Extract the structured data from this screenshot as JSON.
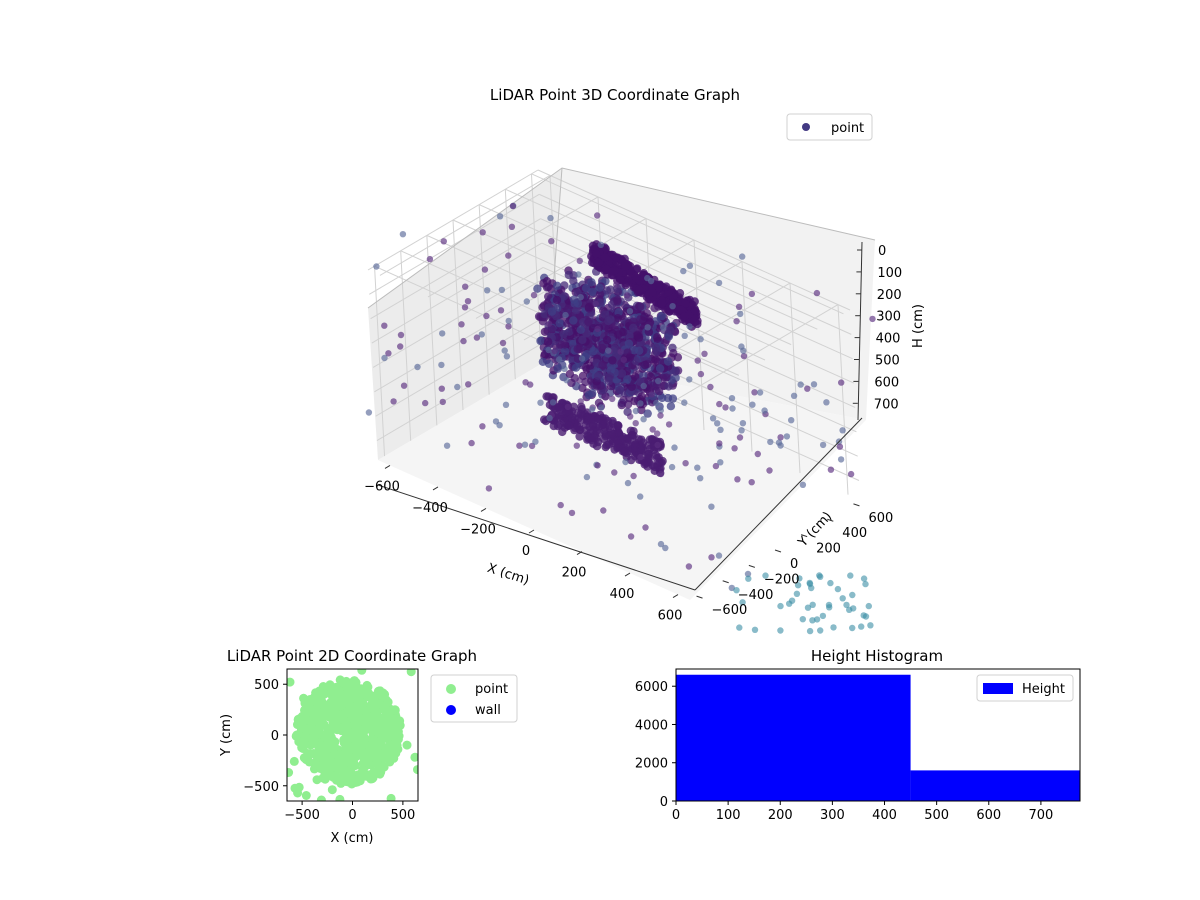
{
  "figure": {
    "background": "#ffffff"
  },
  "chart_data": [
    {
      "type": "scatter",
      "subtype": "3d",
      "title": "LiDAR Point 3D Coordinate Graph",
      "xlabel": "X (cm)",
      "ylabel": "Y (cm)",
      "zlabel": "H (cm)",
      "x_ticks": [
        "−600",
        "−400",
        "−200",
        "0",
        "200",
        "400",
        "600"
      ],
      "y_ticks": [
        "−600",
        "−400",
        "−200",
        "0",
        "200",
        "400",
        "600"
      ],
      "z_ticks": [
        "0",
        "100",
        "200",
        "300",
        "400",
        "500",
        "600",
        "700"
      ],
      "z_inverted": true,
      "xlim": [
        -650,
        650
      ],
      "ylim": [
        -650,
        650
      ],
      "zlim": [
        0,
        780
      ],
      "grid": true,
      "legend": {
        "position": "top-right",
        "entries": [
          {
            "label": "point",
            "color": "#433a83"
          }
        ]
      },
      "colormap": "viridis",
      "colors": {
        "dense": "#45106a",
        "mid": "#3b3a87",
        "sparse_teal": "#3b8ea5"
      },
      "series": [
        {
          "name": "point",
          "marker": "circle",
          "points_estimated": 8200
        }
      ]
    },
    {
      "type": "scatter",
      "title": "LiDAR Point 2D Coordinate Graph",
      "xlabel": "X (cm)",
      "ylabel": "Y (cm)",
      "x_ticks": [
        "−500",
        "0",
        "500"
      ],
      "y_ticks": [
        "500",
        "0",
        "−500"
      ],
      "xlim": [
        -650,
        650
      ],
      "ylim": [
        -650,
        650
      ],
      "legend": {
        "position": "outside-right",
        "entries": [
          {
            "label": "point",
            "color": "#90ee90"
          },
          {
            "label": "wall",
            "color": "#0000ff"
          }
        ]
      },
      "series": [
        {
          "name": "point",
          "color": "#90ee90",
          "extent_x": [
            -650,
            650
          ],
          "extent_y": [
            -650,
            650
          ]
        },
        {
          "name": "wall",
          "color": "#0000ff",
          "points": []
        }
      ]
    },
    {
      "type": "bar",
      "subtype": "histogram",
      "title": "Height Histogram",
      "bins": [
        [
          0,
          450
        ],
        [
          450,
          775
        ]
      ],
      "values": [
        6600,
        1600
      ],
      "color": "#0000ff",
      "xlim": [
        0,
        775
      ],
      "ylim": [
        0,
        6900
      ],
      "x_ticks": [
        "0",
        "100",
        "200",
        "300",
        "400",
        "500",
        "600",
        "700"
      ],
      "y_ticks": [
        "0",
        "2000",
        "4000",
        "6000"
      ],
      "legend": {
        "position": "top-right",
        "entries": [
          {
            "label": "Height",
            "color": "#0000ff"
          }
        ]
      }
    }
  ]
}
